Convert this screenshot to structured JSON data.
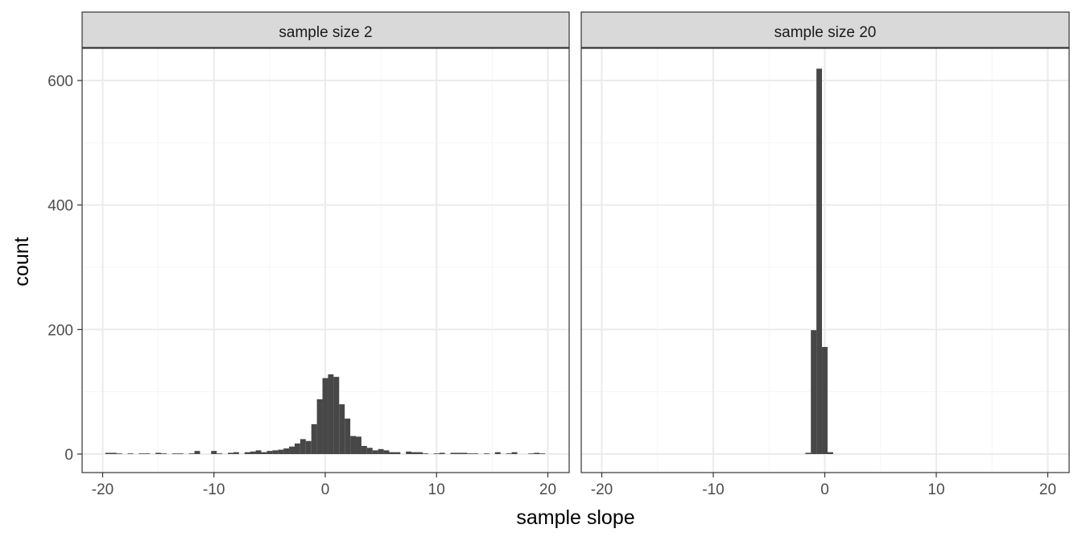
{
  "chart_data": {
    "type": "bar",
    "xlabel": "sample slope",
    "ylabel": "count",
    "xlim": [
      -22,
      22
    ],
    "ylim": [
      0,
      650
    ],
    "x_ticks": [
      -20,
      -10,
      0,
      10,
      20
    ],
    "y_ticks": [
      0,
      200,
      400,
      600
    ],
    "grid": true,
    "bin_width": 0.5,
    "panels": [
      {
        "strip_label": "sample size 2",
        "bins": [
          {
            "x": -19.5,
            "count": 2
          },
          {
            "x": -19.0,
            "count": 2
          },
          {
            "x": -18.5,
            "count": 1
          },
          {
            "x": -17.5,
            "count": 1
          },
          {
            "x": -16.5,
            "count": 1
          },
          {
            "x": -16.0,
            "count": 1
          },
          {
            "x": -15.0,
            "count": 2
          },
          {
            "x": -14.5,
            "count": 1
          },
          {
            "x": -13.5,
            "count": 1
          },
          {
            "x": -13.0,
            "count": 1
          },
          {
            "x": -12.0,
            "count": 1
          },
          {
            "x": -11.5,
            "count": 5
          },
          {
            "x": -10.0,
            "count": 5
          },
          {
            "x": -9.5,
            "count": 1
          },
          {
            "x": -8.5,
            "count": 2
          },
          {
            "x": -8.0,
            "count": 3
          },
          {
            "x": -7.0,
            "count": 3
          },
          {
            "x": -6.5,
            "count": 4
          },
          {
            "x": -6.0,
            "count": 6
          },
          {
            "x": -5.5,
            "count": 3
          },
          {
            "x": -5.0,
            "count": 5
          },
          {
            "x": -4.5,
            "count": 6
          },
          {
            "x": -4.0,
            "count": 7
          },
          {
            "x": -3.5,
            "count": 9
          },
          {
            "x": -3.0,
            "count": 12
          },
          {
            "x": -2.5,
            "count": 17
          },
          {
            "x": -2.0,
            "count": 24
          },
          {
            "x": -1.5,
            "count": 21
          },
          {
            "x": -1.0,
            "count": 48
          },
          {
            "x": -0.5,
            "count": 88
          },
          {
            "x": 0.0,
            "count": 122
          },
          {
            "x": 0.5,
            "count": 128
          },
          {
            "x": 1.0,
            "count": 124
          },
          {
            "x": 1.5,
            "count": 80
          },
          {
            "x": 2.0,
            "count": 57
          },
          {
            "x": 2.5,
            "count": 29
          },
          {
            "x": 3.0,
            "count": 28
          },
          {
            "x": 3.5,
            "count": 13
          },
          {
            "x": 4.0,
            "count": 10
          },
          {
            "x": 4.5,
            "count": 6
          },
          {
            "x": 5.0,
            "count": 8
          },
          {
            "x": 5.5,
            "count": 6
          },
          {
            "x": 6.0,
            "count": 3
          },
          {
            "x": 6.5,
            "count": 3
          },
          {
            "x": 7.5,
            "count": 4
          },
          {
            "x": 8.0,
            "count": 3
          },
          {
            "x": 8.5,
            "count": 3
          },
          {
            "x": 9.0,
            "count": 1
          },
          {
            "x": 10.0,
            "count": 1
          },
          {
            "x": 10.5,
            "count": 2
          },
          {
            "x": 11.5,
            "count": 2
          },
          {
            "x": 12.0,
            "count": 2
          },
          {
            "x": 12.5,
            "count": 2
          },
          {
            "x": 13.0,
            "count": 1
          },
          {
            "x": 13.5,
            "count": 1
          },
          {
            "x": 14.5,
            "count": 1
          },
          {
            "x": 15.5,
            "count": 3
          },
          {
            "x": 16.5,
            "count": 1
          },
          {
            "x": 17.0,
            "count": 3
          },
          {
            "x": 18.5,
            "count": 1
          },
          {
            "x": 19.0,
            "count": 2
          },
          {
            "x": 19.5,
            "count": 1
          }
        ]
      },
      {
        "strip_label": "sample size 20",
        "bins": [
          {
            "x": -1.5,
            "count": 2
          },
          {
            "x": -1.0,
            "count": 199
          },
          {
            "x": -0.5,
            "count": 619
          },
          {
            "x": 0.0,
            "count": 172
          },
          {
            "x": 0.5,
            "count": 3
          }
        ]
      }
    ]
  },
  "colors": {
    "bar": "#474747",
    "strip_fill": "#d9d9d9",
    "strip_border": "#333333",
    "panel_border": "#333333",
    "grid_major": "#ebebeb",
    "grid_minor": "#f5f5f5",
    "background": "#ffffff"
  }
}
